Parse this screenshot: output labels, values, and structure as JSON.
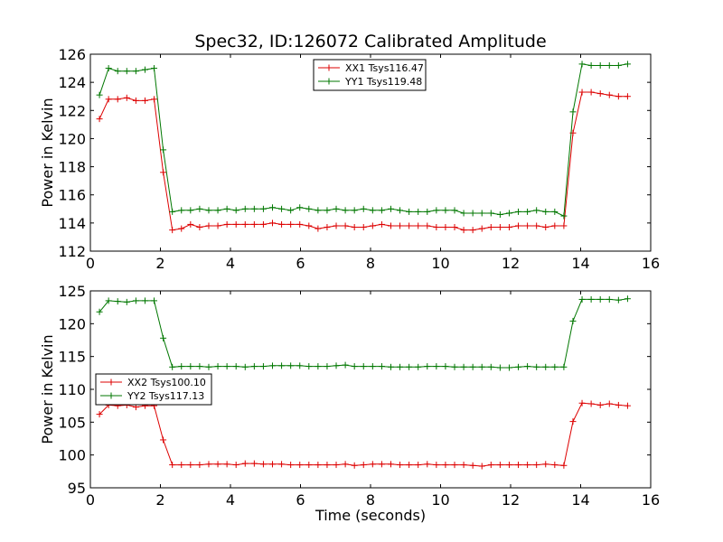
{
  "figure": {
    "title": "Spec32, ID:126072 Calibrated Amplitude"
  },
  "colors": {
    "red": "#dd0000",
    "green": "#007700"
  },
  "chart_data": [
    {
      "type": "line",
      "xlabel": "",
      "ylabel": "Power in Kelvin",
      "xlim": [
        0,
        16
      ],
      "ylim": [
        112,
        126
      ],
      "xticks": [
        "0",
        "2",
        "4",
        "6",
        "8",
        "10",
        "12",
        "14",
        "16"
      ],
      "yticks": [
        "112",
        "114",
        "116",
        "118",
        "120",
        "122",
        "124",
        "126"
      ],
      "legend": "top-center",
      "grid": false,
      "x": [
        0.26,
        0.52,
        0.78,
        1.04,
        1.3,
        1.56,
        1.82,
        2.08,
        2.34,
        2.6,
        2.86,
        3.12,
        3.38,
        3.64,
        3.9,
        4.16,
        4.42,
        4.68,
        4.94,
        5.2,
        5.46,
        5.72,
        5.98,
        6.24,
        6.5,
        6.76,
        7.02,
        7.28,
        7.54,
        7.8,
        8.06,
        8.32,
        8.58,
        8.84,
        9.1,
        9.36,
        9.62,
        9.88,
        10.14,
        10.4,
        10.66,
        10.92,
        11.18,
        11.44,
        11.7,
        11.96,
        12.22,
        12.48,
        12.74,
        13.0,
        13.26,
        13.52,
        13.78,
        14.04,
        14.3,
        14.56,
        14.82,
        15.08,
        15.34
      ],
      "series": [
        {
          "name": "XX1 Tsys116.47",
          "color": "#dd0000",
          "values": [
            121.4,
            122.8,
            122.8,
            122.9,
            122.7,
            122.7,
            122.8,
            117.6,
            113.5,
            113.6,
            113.9,
            113.7,
            113.8,
            113.8,
            113.9,
            113.9,
            113.9,
            113.9,
            113.9,
            114.0,
            113.9,
            113.9,
            113.9,
            113.8,
            113.6,
            113.7,
            113.8,
            113.8,
            113.7,
            113.7,
            113.8,
            113.9,
            113.8,
            113.8,
            113.8,
            113.8,
            113.8,
            113.7,
            113.7,
            113.7,
            113.5,
            113.5,
            113.6,
            113.7,
            113.7,
            113.7,
            113.8,
            113.8,
            113.8,
            113.7,
            113.8,
            113.8,
            120.4,
            123.3,
            123.3,
            123.2,
            123.1,
            123.0,
            123.0
          ]
        },
        {
          "name": "YY1 Tsys119.48",
          "color": "#007700",
          "values": [
            123.1,
            125.0,
            124.8,
            124.8,
            124.8,
            124.9,
            125.0,
            119.2,
            114.8,
            114.9,
            114.9,
            115.0,
            114.9,
            114.9,
            115.0,
            114.9,
            115.0,
            115.0,
            115.0,
            115.1,
            115.0,
            114.9,
            115.1,
            115.0,
            114.9,
            114.9,
            115.0,
            114.9,
            114.9,
            115.0,
            114.9,
            114.9,
            115.0,
            114.9,
            114.8,
            114.8,
            114.8,
            114.9,
            114.9,
            114.9,
            114.7,
            114.7,
            114.7,
            114.7,
            114.6,
            114.7,
            114.8,
            114.8,
            114.9,
            114.8,
            114.8,
            114.5,
            121.9,
            125.3,
            125.2,
            125.2,
            125.2,
            125.2,
            125.3
          ]
        }
      ]
    },
    {
      "type": "line",
      "xlabel": "Time (seconds)",
      "ylabel": "Power in Kelvin",
      "xlim": [
        0,
        16
      ],
      "ylim": [
        95,
        125
      ],
      "xticks": [
        "0",
        "2",
        "4",
        "6",
        "8",
        "10",
        "12",
        "14",
        "16"
      ],
      "yticks": [
        "95",
        "100",
        "105",
        "110",
        "115",
        "120",
        "125"
      ],
      "legend": "center-left",
      "grid": false,
      "x": [
        0.26,
        0.52,
        0.78,
        1.04,
        1.3,
        1.56,
        1.82,
        2.08,
        2.34,
        2.6,
        2.86,
        3.12,
        3.38,
        3.64,
        3.9,
        4.16,
        4.42,
        4.68,
        4.94,
        5.2,
        5.46,
        5.72,
        5.98,
        6.24,
        6.5,
        6.76,
        7.02,
        7.28,
        7.54,
        7.8,
        8.06,
        8.32,
        8.58,
        8.84,
        9.1,
        9.36,
        9.62,
        9.88,
        10.14,
        10.4,
        10.66,
        10.92,
        11.18,
        11.44,
        11.7,
        11.96,
        12.22,
        12.48,
        12.74,
        13.0,
        13.26,
        13.52,
        13.78,
        14.04,
        14.3,
        14.56,
        14.82,
        15.08,
        15.34
      ],
      "series": [
        {
          "name": "XX2 Tsys100.10",
          "color": "#dd0000",
          "values": [
            106.2,
            107.6,
            107.5,
            107.6,
            107.3,
            107.5,
            107.5,
            102.3,
            98.5,
            98.5,
            98.5,
            98.5,
            98.6,
            98.6,
            98.6,
            98.5,
            98.7,
            98.7,
            98.6,
            98.6,
            98.6,
            98.5,
            98.5,
            98.5,
            98.5,
            98.5,
            98.5,
            98.6,
            98.4,
            98.5,
            98.6,
            98.6,
            98.6,
            98.5,
            98.5,
            98.5,
            98.6,
            98.5,
            98.5,
            98.5,
            98.5,
            98.4,
            98.3,
            98.5,
            98.5,
            98.5,
            98.5,
            98.5,
            98.5,
            98.6,
            98.5,
            98.4,
            105.1,
            107.9,
            107.8,
            107.6,
            107.8,
            107.6,
            107.5
          ]
        },
        {
          "name": "YY2 Tsys117.13",
          "color": "#007700",
          "values": [
            121.8,
            123.5,
            123.4,
            123.3,
            123.5,
            123.5,
            123.5,
            117.8,
            113.4,
            113.5,
            113.5,
            113.5,
            113.4,
            113.5,
            113.5,
            113.5,
            113.4,
            113.5,
            113.5,
            113.6,
            113.6,
            113.6,
            113.6,
            113.5,
            113.5,
            113.5,
            113.6,
            113.7,
            113.5,
            113.5,
            113.5,
            113.5,
            113.4,
            113.4,
            113.4,
            113.4,
            113.5,
            113.5,
            113.5,
            113.4,
            113.4,
            113.4,
            113.4,
            113.4,
            113.3,
            113.3,
            113.4,
            113.5,
            113.4,
            113.4,
            113.4,
            113.4,
            120.4,
            123.7,
            123.7,
            123.7,
            123.7,
            123.6,
            123.8
          ]
        }
      ]
    }
  ]
}
